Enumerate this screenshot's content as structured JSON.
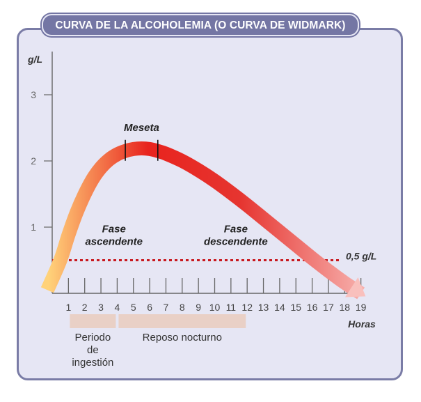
{
  "title": "CURVA DE LA ALCOHOLEMIA (O CURVA DE WIDMARK)",
  "colors": {
    "panel_bg": "#e6e6f4",
    "frame": "#7a7ca6",
    "title_bg": "#7476a4",
    "curve_start": "#ffd27a",
    "curve_peak": "#e8231e",
    "curve_end": "#f9c0bd",
    "threshold_line": "#c8181e",
    "period_bar": "#e9d0c6"
  },
  "chart_data": {
    "type": "line",
    "title": "CURVA DE LA ALCOHOLEMIA (O CURVA DE WIDMARK)",
    "ylabel": "g/L",
    "xlabel": "Horas",
    "xlim": [
      0,
      19
    ],
    "ylim": [
      0,
      3.5
    ],
    "x_ticks": [
      1,
      2,
      3,
      4,
      5,
      6,
      7,
      8,
      9,
      10,
      11,
      12,
      13,
      14,
      15,
      16,
      17,
      18,
      19
    ],
    "y_ticks": [
      1,
      2,
      3
    ],
    "series": [
      {
        "x": [
          -0.3,
          0.5,
          1.0,
          1.5,
          2.0,
          2.5,
          3.0,
          3.5,
          4.0,
          4.5,
          5.0,
          5.5,
          6.0,
          6.5,
          7.0,
          8.0,
          9.0,
          10.0,
          11.0,
          12.0,
          13.0,
          14.0,
          15.0,
          16.0,
          17.0,
          18.0,
          19.0
        ],
        "y": [
          0.05,
          0.5,
          0.88,
          1.22,
          1.5,
          1.73,
          1.9,
          2.02,
          2.1,
          2.15,
          2.18,
          2.19,
          2.18,
          2.15,
          2.11,
          2.0,
          1.86,
          1.7,
          1.52,
          1.33,
          1.13,
          0.93,
          0.73,
          0.53,
          0.34,
          0.16,
          0.0
        ]
      }
    ],
    "threshold": {
      "y": 0.5,
      "label": "0,5 g/L"
    },
    "plateau": {
      "label": "Meseta",
      "x_start": 4.5,
      "x_end": 6.5
    },
    "annotations": [
      {
        "text": [
          "Fase",
          "ascendente"
        ],
        "x": 3.8,
        "y": 0.92
      },
      {
        "text": [
          "Fase",
          "descendente"
        ],
        "x": 11.3,
        "y": 0.92
      }
    ],
    "periods": [
      {
        "label": [
          "Periodo",
          "de",
          "ingestión"
        ],
        "x_start": 1,
        "x_end": 4
      },
      {
        "label": [
          "Reposo nocturno"
        ],
        "x_start": 4,
        "x_end": 12
      }
    ]
  }
}
